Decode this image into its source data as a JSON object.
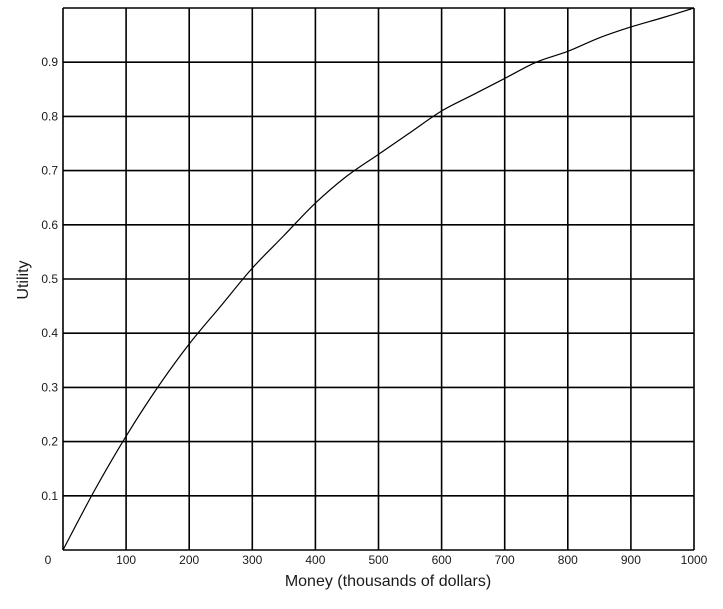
{
  "chart_data": {
    "type": "line",
    "title": "",
    "xlabel": "Money (thousands of dollars)",
    "ylabel": "Utility",
    "xlim": [
      0,
      1000
    ],
    "ylim": [
      0,
      1
    ],
    "x_ticks": [
      0,
      100,
      200,
      300,
      400,
      500,
      600,
      700,
      800,
      900,
      1000
    ],
    "y_ticks": [
      0.1,
      0.2,
      0.3,
      0.4,
      0.5,
      0.6,
      0.7,
      0.8,
      0.9
    ],
    "origin_label": "0",
    "grid": true,
    "series": [
      {
        "x": [
          0,
          50,
          100,
          150,
          200,
          250,
          300,
          350,
          400,
          450,
          500,
          550,
          600,
          650,
          700,
          750,
          800,
          850,
          900,
          950,
          1000
        ],
        "y": [
          0,
          0.11,
          0.21,
          0.3,
          0.38,
          0.45,
          0.52,
          0.58,
          0.64,
          0.69,
          0.73,
          0.77,
          0.81,
          0.84,
          0.87,
          0.9,
          0.92,
          0.945,
          0.965,
          0.982,
          1.0
        ]
      }
    ]
  }
}
